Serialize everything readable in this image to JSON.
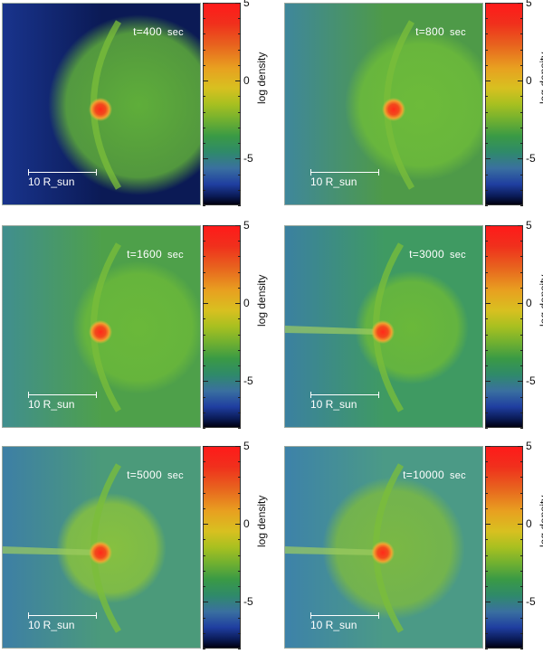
{
  "panels": [
    {
      "time_label": "t=400",
      "unit": "sec",
      "scale_label": "10 R_sun"
    },
    {
      "time_label": "t=800",
      "unit": "sec",
      "scale_label": "10 R_sun"
    },
    {
      "time_label": "t=1600",
      "unit": "sec",
      "scale_label": "10 R_sun"
    },
    {
      "time_label": "t=3000",
      "unit": "sec",
      "scale_label": "10 R_sun"
    },
    {
      "time_label": "t=5000",
      "unit": "sec",
      "scale_label": "10 R_sun"
    },
    {
      "time_label": "t=10000",
      "unit": "sec",
      "scale_label": "10 R_sun"
    }
  ],
  "colorbar": {
    "label": "log density",
    "ticks": [
      "5",
      "0",
      "-5"
    ],
    "colors": [
      "#ff1a1a",
      "#e8a020",
      "#a8c020",
      "#3a9a45",
      "#3a70a0",
      "#0a1a55"
    ]
  }
}
